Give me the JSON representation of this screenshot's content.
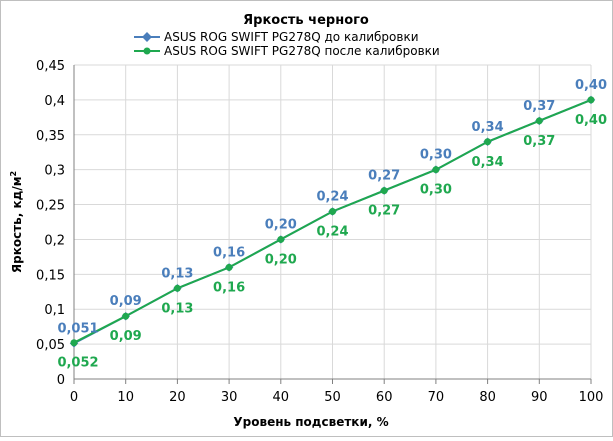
{
  "chart_data": {
    "type": "line",
    "title": "Яркость черного",
    "xlabel": "Уровень подсветки, %",
    "ylabel_main": "Яркость, кд/м",
    "ylabel_sup": "2",
    "x": [
      0,
      10,
      20,
      30,
      40,
      50,
      60,
      70,
      80,
      90,
      100
    ],
    "xlim": [
      0,
      100
    ],
    "ylim": [
      0,
      0.45
    ],
    "x_ticks": [
      "0",
      "10",
      "20",
      "30",
      "40",
      "50",
      "60",
      "70",
      "80",
      "90",
      "100"
    ],
    "y_ticks": [
      "0",
      "0,05",
      "0,1",
      "0,15",
      "0,2",
      "0,25",
      "0,3",
      "0,35",
      "0,4",
      "0,45"
    ],
    "grid": true,
    "legend_position": "top",
    "series": [
      {
        "name": "ASUS ROG SWIFT PG278Q до калибровки",
        "color": "#4a7ebb",
        "values": [
          0.051,
          0.09,
          0.13,
          0.16,
          0.2,
          0.24,
          0.27,
          0.3,
          0.34,
          0.37,
          0.4
        ],
        "labels": [
          "0,051",
          "0,09",
          "0,13",
          "0,16",
          "0,20",
          "0,24",
          "0,27",
          "0,30",
          "0,34",
          "0,37",
          "0,40"
        ],
        "label_position": "above"
      },
      {
        "name": "ASUS ROG SWIFT PG278Q после калибровки",
        "color": "#1fa84f",
        "values": [
          0.052,
          0.09,
          0.13,
          0.16,
          0.2,
          0.24,
          0.27,
          0.3,
          0.34,
          0.37,
          0.4
        ],
        "labels": [
          "0,052",
          "0,09",
          "0,13",
          "0,16",
          "0,20",
          "0,24",
          "0,27",
          "0,30",
          "0,34",
          "0,37",
          "0,40"
        ],
        "label_position": "below"
      }
    ]
  }
}
